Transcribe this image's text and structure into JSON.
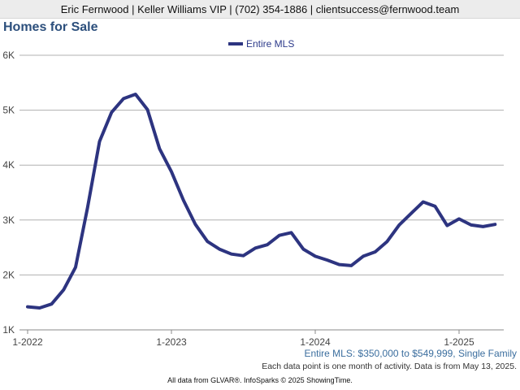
{
  "header": {
    "text": "Eric Fernwood | Keller Williams VIP | (702) 354-1886 | clientsuccess@fernwood.team"
  },
  "title": "Homes for Sale",
  "subtitle": "Entire MLS: $350,000 to $549,999, Single Family",
  "note": "Each data point is one month of activity. Data is from May 13, 2025.",
  "source": "All data from GLVAR®. InfoSparks © 2025 ShowingTime.",
  "colors": {
    "series": "#2d3480",
    "title": "#2c4f7c",
    "subtitle": "#3b6e9e",
    "grid": "#b0b0b0",
    "header_bg": "#ececec"
  },
  "chart_data": {
    "type": "line",
    "title": "Homes for Sale",
    "xlabel": "",
    "ylabel": "",
    "x_ticks": [
      "1-2022",
      "1-2023",
      "1-2024",
      "1-2025"
    ],
    "y_ticks": [
      "1K",
      "2K",
      "3K",
      "4K",
      "5K",
      "6K"
    ],
    "ylim": [
      1000,
      6000
    ],
    "grid": "horizontal",
    "legend": "top-center",
    "x": [
      "2022-01",
      "2022-02",
      "2022-03",
      "2022-04",
      "2022-05",
      "2022-06",
      "2022-07",
      "2022-08",
      "2022-09",
      "2022-10",
      "2022-11",
      "2022-12",
      "2023-01",
      "2023-02",
      "2023-03",
      "2023-04",
      "2023-05",
      "2023-06",
      "2023-07",
      "2023-08",
      "2023-09",
      "2023-10",
      "2023-11",
      "2023-12",
      "2024-01",
      "2024-02",
      "2024-03",
      "2024-04",
      "2024-05",
      "2024-06",
      "2024-07",
      "2024-08",
      "2024-09",
      "2024-10",
      "2024-11",
      "2024-12",
      "2025-01",
      "2025-02",
      "2025-03",
      "2025-04"
    ],
    "series": [
      {
        "name": "Entire MLS",
        "values": [
          1420,
          1400,
          1470,
          1730,
          2140,
          3230,
          4430,
          4960,
          5210,
          5290,
          5010,
          4300,
          3880,
          3360,
          2920,
          2610,
          2470,
          2380,
          2350,
          2490,
          2550,
          2720,
          2770,
          2470,
          2340,
          2270,
          2190,
          2170,
          2340,
          2420,
          2610,
          2910,
          3120,
          3330,
          3250,
          2900,
          3020,
          2910,
          2880,
          2920
        ]
      }
    ]
  }
}
